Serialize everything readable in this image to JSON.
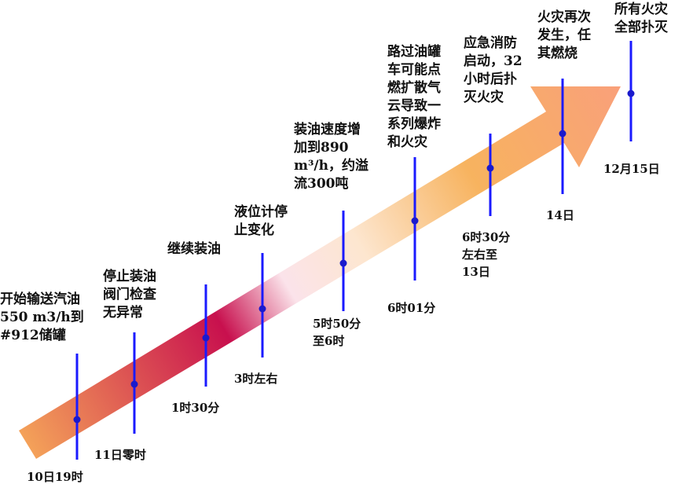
{
  "colors": {
    "arrow_start": "#f4a259",
    "arrow_mid_dark": "#c8104e",
    "arrow_mid_light": "#fbe3ea",
    "arrow_end": "#f9a07a",
    "tick": "#1a1aff"
  },
  "milestones": [
    {
      "event": [
        "开始输送汽油",
        "550 m3/h到",
        "#912储罐"
      ],
      "time": [
        "10日19时"
      ]
    },
    {
      "event": [
        "停止装油",
        "阀门检查",
        "无异常"
      ],
      "time": [
        "11日零时"
      ]
    },
    {
      "event": [
        "继续装油"
      ],
      "time": [
        "1时30分"
      ]
    },
    {
      "event": [
        "液位计停",
        "止变化"
      ],
      "time": [
        "3时左右"
      ]
    },
    {
      "event": [
        "装油速度增",
        "加到890",
        "m³/h，约溢",
        "流300吨"
      ],
      "time": [
        "5时50分",
        "至6时"
      ]
    },
    {
      "event": [
        "路过油罐",
        "车可能点",
        "燃扩散气",
        "云导致一",
        "系列爆炸",
        "和火灾"
      ],
      "time": [
        "6时01分"
      ]
    },
    {
      "event": [
        "应急消防",
        "启动，32",
        "小时后扑",
        "灭火灾"
      ],
      "time": [
        "6时30分",
        "左右至",
        "13日"
      ]
    },
    {
      "event": [
        "火灾再次",
        "发生，任",
        "其燃烧"
      ],
      "time": [
        "14日"
      ]
    },
    {
      "event": [
        "所有火灾",
        "全部扑灭"
      ],
      "time": [
        "12月15日"
      ]
    }
  ]
}
